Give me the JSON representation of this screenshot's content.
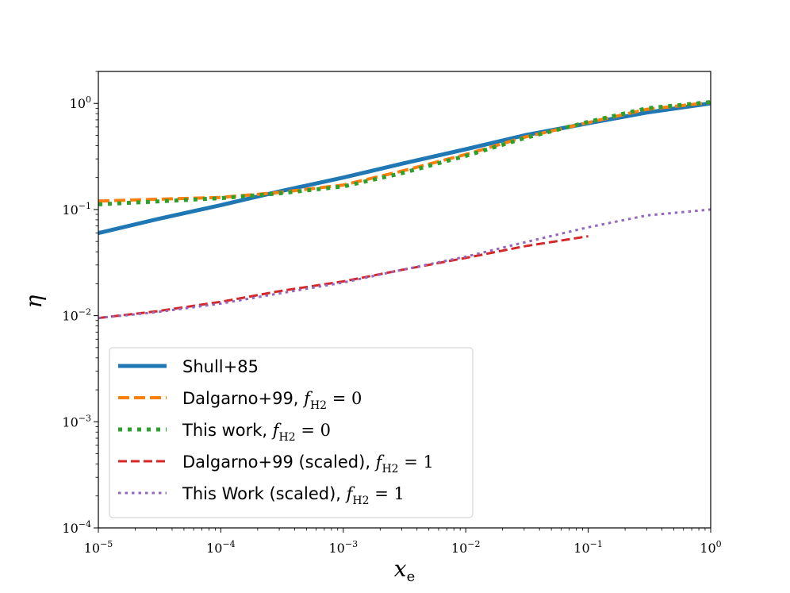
{
  "chart_data": {
    "type": "line",
    "title": "",
    "xlabel": "x_e",
    "ylabel": "η",
    "xscale": "log",
    "yscale": "log",
    "xlim": [
      1e-05,
      1
    ],
    "ylim": [
      0.0001,
      2
    ],
    "grid": false,
    "legend_position": "lower-left",
    "xticks": [
      {
        "value": 1e-05,
        "base": "10",
        "exp": "−5"
      },
      {
        "value": 0.0001,
        "base": "10",
        "exp": "−4"
      },
      {
        "value": 0.001,
        "base": "10",
        "exp": "−3"
      },
      {
        "value": 0.01,
        "base": "10",
        "exp": "−2"
      },
      {
        "value": 0.1,
        "base": "10",
        "exp": "−1"
      },
      {
        "value": 1,
        "base": "10",
        "exp": "0"
      }
    ],
    "yticks": [
      {
        "value": 0.0001,
        "base": "10",
        "exp": "−4"
      },
      {
        "value": 0.001,
        "base": "10",
        "exp": "−3"
      },
      {
        "value": 0.01,
        "base": "10",
        "exp": "−2"
      },
      {
        "value": 0.1,
        "base": "10",
        "exp": "−1"
      },
      {
        "value": 1,
        "base": "10",
        "exp": "0"
      }
    ],
    "series": [
      {
        "name": "Shull+85",
        "label_text": "Shull+85",
        "label_math": "",
        "color": "#1f77b4",
        "style": "solid",
        "x": [
          1e-05,
          3e-05,
          0.0001,
          0.0003,
          0.001,
          0.003,
          0.01,
          0.03,
          0.1,
          0.3,
          1
        ],
        "y": [
          0.06,
          0.081,
          0.11,
          0.148,
          0.2,
          0.27,
          0.37,
          0.5,
          0.65,
          0.82,
          1.0
        ]
      },
      {
        "name": "Dalgarno+99, f_H2 = 0",
        "label_text": "Dalgarno+99, ",
        "label_math": "f_H2 = 0",
        "color": "#ff7f0e",
        "style": "dashed",
        "x": [
          1e-05,
          3e-05,
          0.0001,
          0.0003,
          0.001,
          0.003,
          0.01,
          0.03,
          0.1,
          0.3,
          1
        ],
        "y": [
          0.12,
          0.125,
          0.13,
          0.145,
          0.17,
          0.23,
          0.33,
          0.48,
          0.66,
          0.88,
          1.02
        ]
      },
      {
        "name": "This work, f_H2 = 0",
        "label_text": "This work, ",
        "label_math": "f_H2 = 0",
        "color": "#2ca02c",
        "style": "dotted",
        "x": [
          1e-05,
          3e-05,
          0.0001,
          0.0003,
          0.001,
          0.003,
          0.01,
          0.03,
          0.1,
          0.3,
          1
        ],
        "y": [
          0.112,
          0.119,
          0.128,
          0.142,
          0.165,
          0.22,
          0.32,
          0.47,
          0.67,
          0.9,
          1.03
        ]
      },
      {
        "name": "Dalgarno+99 (scaled), f_H2 = 1",
        "label_text": "Dalgarno+99 (scaled), ",
        "label_math": "f_H2 = 1",
        "color": "#d62728",
        "style": "dashed",
        "x": [
          1e-05,
          3e-05,
          0.0001,
          0.0003,
          0.001,
          0.003,
          0.01,
          0.03,
          0.1
        ],
        "y": [
          0.0095,
          0.011,
          0.0135,
          0.017,
          0.021,
          0.027,
          0.035,
          0.045,
          0.056
        ]
      },
      {
        "name": "This Work (scaled), f_H2 = 1",
        "label_text": "This Work (scaled), ",
        "label_math": "f_H2 = 1",
        "color": "#9467bd",
        "style": "dotted",
        "x": [
          1e-05,
          3e-05,
          0.0001,
          0.0003,
          0.001,
          0.003,
          0.01,
          0.03,
          0.1,
          0.3,
          1
        ],
        "y": [
          0.0095,
          0.0108,
          0.013,
          0.0162,
          0.0205,
          0.027,
          0.036,
          0.049,
          0.068,
          0.088,
          0.1
        ]
      }
    ]
  }
}
